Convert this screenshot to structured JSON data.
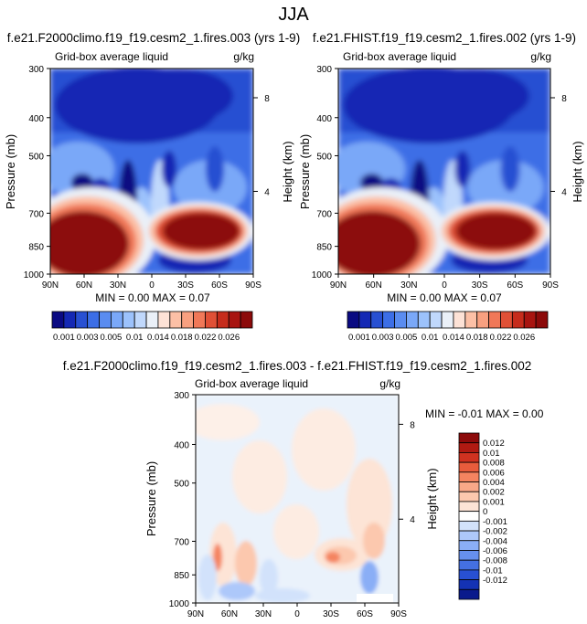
{
  "figure": {
    "season_title": "JJA"
  },
  "colors": {
    "top": [
      "#0a0a82",
      "#1428b4",
      "#2850d2",
      "#3c6ee6",
      "#5a8cf0",
      "#7aa8f8",
      "#9cc2fc",
      "#c0d8fc",
      "#eaf0f8",
      "#fde2d6",
      "#fcc0a6",
      "#f8a080",
      "#f07858",
      "#e05036",
      "#c62c1c",
      "#a81410",
      "#8c0a0a"
    ],
    "diff": [
      "#0a1a8c",
      "#1432b4",
      "#2850d2",
      "#4470e2",
      "#6690ee",
      "#8aaef6",
      "#adc8fa",
      "#d2e2fb",
      "#ffffff",
      "#fde4d6",
      "#fcc8ae",
      "#f9a888",
      "#f48460",
      "#e85c3c",
      "#d03220",
      "#b01a12",
      "#8c0a0a"
    ]
  },
  "panel_left": {
    "title": "f.e21.F2000climo.f19_f19.cesm2_1.fires.003 (yrs 1-9)",
    "variable": "Grid-box average liquid",
    "units": "g/kg",
    "ylabel": "Pressure (mb)",
    "right_label": "Height (km)",
    "stats": "MIN =  0.00  MAX =  0.07"
  },
  "panel_right": {
    "title": "f.e21.FHIST.f19_f19.cesm2_1.fires.002 (yrs 1-9)",
    "variable": "Grid-box average liquid",
    "units": "g/kg",
    "ylabel": "Pressure (mb)",
    "right_label": "Height (km)",
    "stats": "MIN =  0.00  MAX =  0.07"
  },
  "panel_diff": {
    "title": "f.e21.F2000climo.f19_f19.cesm2_1.fires.003 - f.e21.FHIST.f19_f19.cesm2_1.fires.002",
    "variable": "Grid-box average liquid",
    "units": "g/kg",
    "ylabel": "Pressure (mb)",
    "right_label": "Height (km)",
    "stats": "MIN = -0.01  MAX =   0.00"
  },
  "chart_data": [
    {
      "type": "heatmap",
      "title": "f.e21.F2000climo.f19_f19.cesm2_1.fires.003 (yrs 1-9)",
      "subtitle": "Grid-box average liquid (g/kg)",
      "xlabel": "",
      "ylabel": "Pressure (mb)",
      "y2label": "Height (km)",
      "x_ticks": [
        "90N",
        "60N",
        "30N",
        "0",
        "30S",
        "60S",
        "90S"
      ],
      "y_ticks": [
        "300",
        "400",
        "500",
        "700",
        "850",
        "1000"
      ],
      "y_tick_values": [
        300,
        400,
        500,
        700,
        850,
        1000
      ],
      "y2_ticks": [
        "8",
        "4"
      ],
      "ylim": [
        1000,
        300
      ],
      "colorbar_labels": [
        "0.001",
        "0.003",
        "0.005",
        "0.01",
        "0.014",
        "0.018",
        "0.022",
        "0.026"
      ],
      "min": 0.0,
      "max": 0.07
    },
    {
      "type": "heatmap",
      "title": "f.e21.FHIST.f19_f19.cesm2_1.fires.002 (yrs 1-9)",
      "subtitle": "Grid-box average liquid (g/kg)",
      "xlabel": "",
      "ylabel": "Pressure (mb)",
      "y2label": "Height (km)",
      "x_ticks": [
        "90N",
        "60N",
        "30N",
        "0",
        "30S",
        "60S",
        "90S"
      ],
      "y_ticks": [
        "300",
        "400",
        "500",
        "700",
        "850",
        "1000"
      ],
      "y_tick_values": [
        300,
        400,
        500,
        700,
        850,
        1000
      ],
      "y2_ticks": [
        "8",
        "4"
      ],
      "ylim": [
        1000,
        300
      ],
      "colorbar_labels": [
        "0.001",
        "0.003",
        "0.005",
        "0.01",
        "0.014",
        "0.018",
        "0.022",
        "0.026"
      ],
      "min": 0.0,
      "max": 0.07
    },
    {
      "type": "heatmap",
      "title": "f.e21.F2000climo.f19_f19.cesm2_1.fires.003 - f.e21.FHIST.f19_f19.cesm2_1.fires.002",
      "subtitle": "Grid-box average liquid (g/kg)",
      "xlabel": "",
      "ylabel": "Pressure (mb)",
      "y2label": "Height (km)",
      "x_ticks": [
        "90N",
        "60N",
        "30N",
        "0",
        "30S",
        "60S",
        "90S"
      ],
      "y_ticks": [
        "300",
        "400",
        "500",
        "700",
        "850",
        "1000"
      ],
      "y_tick_values": [
        300,
        400,
        500,
        700,
        850,
        1000
      ],
      "y2_ticks": [
        "8",
        "4"
      ],
      "ylim": [
        1000,
        300
      ],
      "colorbar_labels": [
        "0.012",
        "0.01",
        "0.008",
        "0.006",
        "0.004",
        "0.002",
        "0.001",
        "0",
        "-0.001",
        "-0.002",
        "-0.004",
        "-0.006",
        "-0.008",
        "-0.01",
        "-0.012"
      ],
      "min": -0.01,
      "max": 0.0
    }
  ]
}
